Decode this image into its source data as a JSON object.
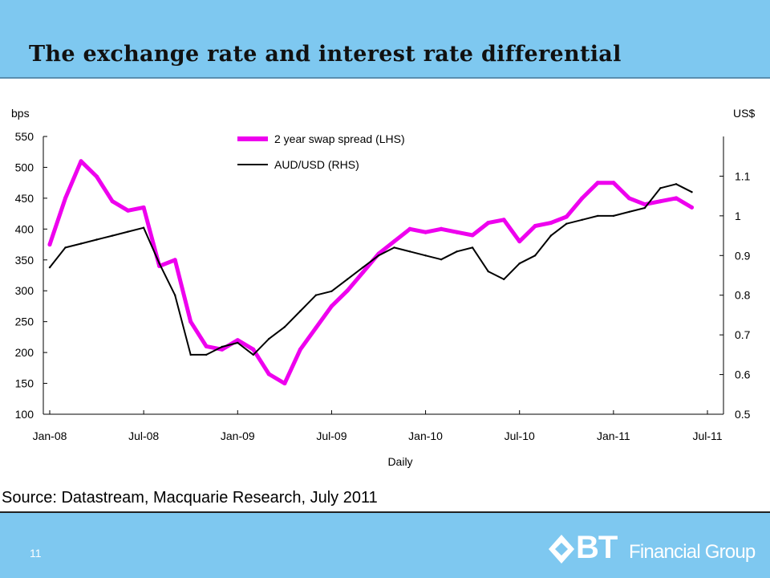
{
  "slide": {
    "title": "The exchange rate and interest rate differential",
    "source": "Source: Datastream, Macquarie Research, July 2011",
    "page_number": "11",
    "logo": {
      "mark": "BT",
      "text": "Financial Group"
    }
  },
  "colors": {
    "band": "#7ec8f0",
    "swap": "#ee00ee",
    "audusd": "#000000"
  },
  "chart_data": {
    "type": "line",
    "ylabel_left": "bps",
    "ylabel_right": "US$",
    "xlabel": "Daily",
    "ylim_left": [
      100,
      550
    ],
    "ylim_right": [
      0.5,
      1.2
    ],
    "yticks_left": [
      100,
      150,
      200,
      250,
      300,
      350,
      400,
      450,
      500,
      550
    ],
    "yticks_right": [
      0.5,
      0.6,
      0.7,
      0.8,
      0.9,
      1,
      1.1
    ],
    "xticks": [
      "Jan-08",
      "Jul-08",
      "Jan-09",
      "Jul-09",
      "Jan-10",
      "Jul-10",
      "Jan-11",
      "Jul-11"
    ],
    "x_range": [
      "2008-01",
      "2011-07"
    ],
    "legend_position": "top-center",
    "series": [
      {
        "name": "2 year swap spread (LHS)",
        "axis": "left",
        "x": [
          "2008-01",
          "2008-02",
          "2008-03",
          "2008-04",
          "2008-05",
          "2008-06",
          "2008-07",
          "2008-08",
          "2008-09",
          "2008-10",
          "2008-11",
          "2008-12",
          "2009-01",
          "2009-02",
          "2009-03",
          "2009-04",
          "2009-05",
          "2009-06",
          "2009-07",
          "2009-08",
          "2009-09",
          "2009-10",
          "2009-11",
          "2009-12",
          "2010-01",
          "2010-02",
          "2010-03",
          "2010-04",
          "2010-05",
          "2010-06",
          "2010-07",
          "2010-08",
          "2010-09",
          "2010-10",
          "2010-11",
          "2010-12",
          "2011-01",
          "2011-02",
          "2011-03",
          "2011-04",
          "2011-05",
          "2011-06"
        ],
        "values": [
          375,
          450,
          510,
          485,
          445,
          430,
          435,
          340,
          350,
          250,
          210,
          205,
          220,
          205,
          165,
          150,
          205,
          240,
          275,
          300,
          330,
          360,
          380,
          400,
          395,
          400,
          395,
          390,
          410,
          415,
          380,
          405,
          410,
          420,
          450,
          475,
          475,
          450,
          440,
          445,
          450,
          435
        ]
      },
      {
        "name": "AUD/USD (RHS)",
        "axis": "right",
        "x": [
          "2008-01",
          "2008-02",
          "2008-03",
          "2008-04",
          "2008-05",
          "2008-06",
          "2008-07",
          "2008-08",
          "2008-09",
          "2008-10",
          "2008-11",
          "2008-12",
          "2009-01",
          "2009-02",
          "2009-03",
          "2009-04",
          "2009-05",
          "2009-06",
          "2009-07",
          "2009-08",
          "2009-09",
          "2009-10",
          "2009-11",
          "2009-12",
          "2010-01",
          "2010-02",
          "2010-03",
          "2010-04",
          "2010-05",
          "2010-06",
          "2010-07",
          "2010-08",
          "2010-09",
          "2010-10",
          "2010-11",
          "2010-12",
          "2011-01",
          "2011-02",
          "2011-03",
          "2011-04",
          "2011-05",
          "2011-06"
        ],
        "values": [
          0.87,
          0.92,
          0.93,
          0.94,
          0.95,
          0.96,
          0.97,
          0.88,
          0.8,
          0.65,
          0.65,
          0.67,
          0.68,
          0.65,
          0.69,
          0.72,
          0.76,
          0.8,
          0.81,
          0.84,
          0.87,
          0.9,
          0.92,
          0.91,
          0.9,
          0.89,
          0.91,
          0.92,
          0.86,
          0.84,
          0.88,
          0.9,
          0.95,
          0.98,
          0.99,
          1.0,
          1.0,
          1.01,
          1.02,
          1.07,
          1.08,
          1.06
        ]
      }
    ]
  }
}
